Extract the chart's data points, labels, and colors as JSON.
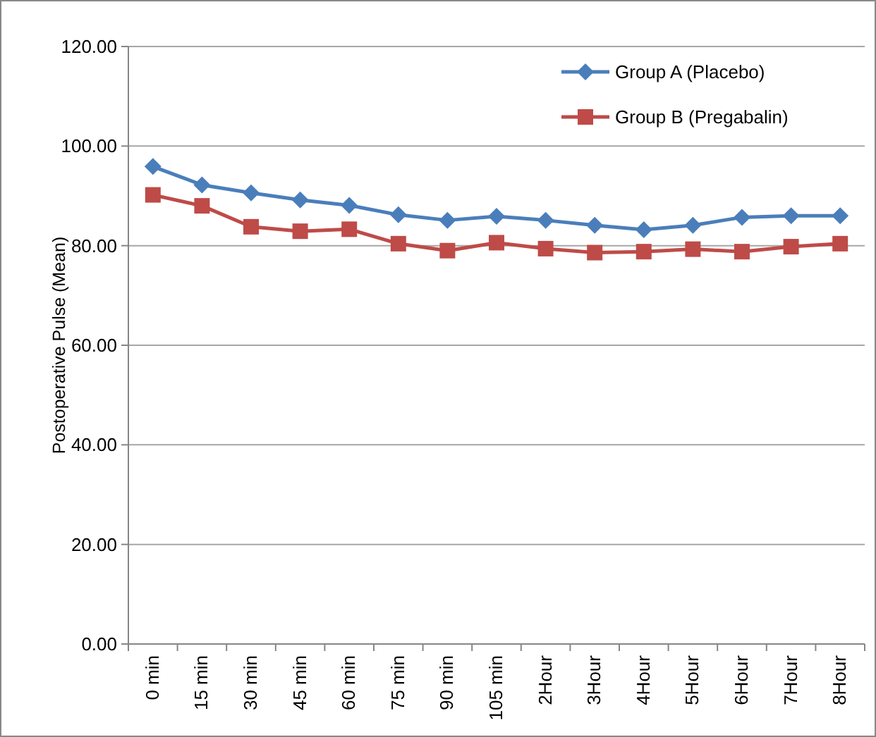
{
  "chart_data": {
    "type": "line",
    "ylabel": "Postoperative Pulse (Mean)",
    "categories": [
      "0 min",
      "15 min",
      "30 min",
      "45 min",
      "60 min",
      "75 min",
      "90 min",
      "105 min",
      "2Hour",
      "3Hour",
      "4Hour",
      "5Hour",
      "6Hour",
      "7Hour",
      "8Hour"
    ],
    "series": [
      {
        "name": "Group A (Placebo)",
        "color": "#4a7ebb",
        "marker": "diamond",
        "values": [
          95.9,
          92.2,
          90.6,
          89.2,
          88.1,
          86.2,
          85.1,
          85.9,
          85.1,
          84.1,
          83.2,
          84.1,
          85.7,
          86.0,
          86.0
        ]
      },
      {
        "name": "Group B (Pregabalin)",
        "color": "#be4b48",
        "marker": "square",
        "values": [
          90.2,
          88.0,
          83.8,
          82.9,
          83.3,
          80.4,
          79.0,
          80.6,
          79.4,
          78.6,
          78.8,
          79.3,
          78.8,
          79.8,
          80.4
        ]
      }
    ],
    "ylim": [
      0,
      120
    ],
    "yticks": [
      {
        "value": 0,
        "label": "0.00"
      },
      {
        "value": 20,
        "label": "20.00"
      },
      {
        "value": 40,
        "label": "40.00"
      },
      {
        "value": 60,
        "label": "60.00"
      },
      {
        "value": 80,
        "label": "80.00"
      },
      {
        "value": 100,
        "label": "100.00"
      },
      {
        "value": 120,
        "label": "120.00"
      }
    ],
    "grid": "y",
    "legend": "top right"
  }
}
